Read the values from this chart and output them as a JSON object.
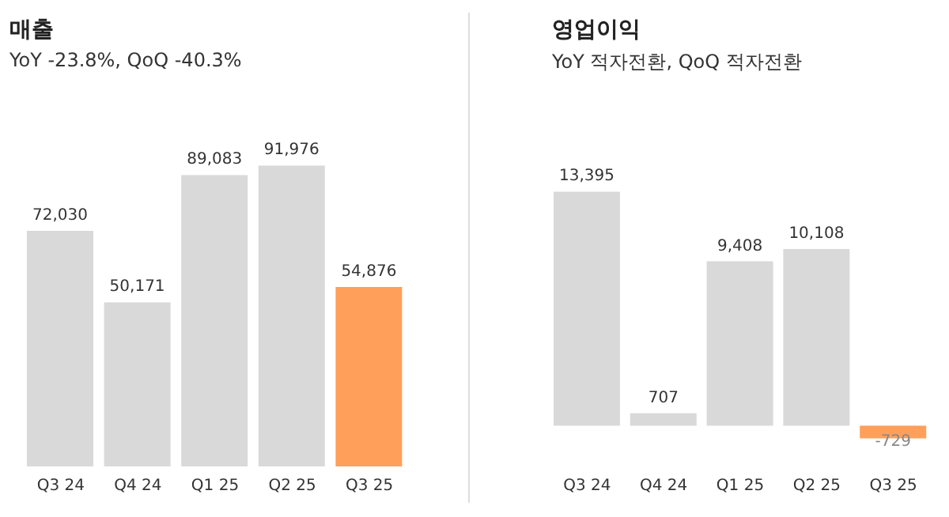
{
  "chart_data": [
    {
      "type": "bar",
      "title": "매출",
      "subtitle": "YoY -23.8%, QoQ -40.3%",
      "categories": [
        "Q3 24",
        "Q4 24",
        "Q1 25",
        "Q2 25",
        "Q3 25"
      ],
      "values": [
        72030,
        50171,
        89083,
        91976,
        54876
      ],
      "colors": [
        "#d9d9d9",
        "#d9d9d9",
        "#d9d9d9",
        "#d9d9d9",
        "#ff9f5a"
      ],
      "value_labels": [
        "72,030",
        "50,171",
        "89,083",
        "91,976",
        "54,876"
      ],
      "grid": false,
      "legend": false
    },
    {
      "type": "bar",
      "title": "영업이익",
      "subtitle": "YoY 적자전환, QoQ 적자전환",
      "categories": [
        "Q3 24",
        "Q4 24",
        "Q1 25",
        "Q2 25",
        "Q3 25"
      ],
      "values": [
        13395,
        707,
        9408,
        10108,
        -729
      ],
      "colors": [
        "#d9d9d9",
        "#d9d9d9",
        "#d9d9d9",
        "#d9d9d9",
        "#ff9f5a"
      ],
      "value_labels": [
        "13,395",
        "707",
        "9,408",
        "10,108",
        "-729"
      ],
      "grid": false,
      "legend": false
    }
  ]
}
